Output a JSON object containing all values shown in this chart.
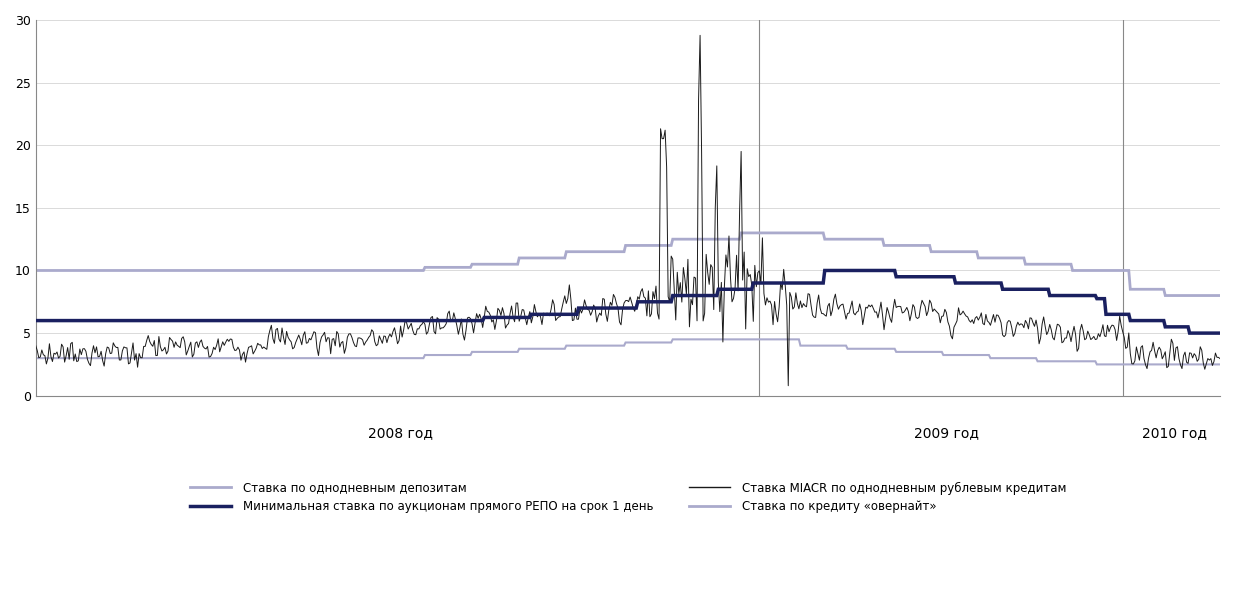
{
  "ylim": [
    0,
    30
  ],
  "yticks": [
    0,
    5,
    10,
    15,
    20,
    25,
    30
  ],
  "year_labels": [
    "2008 год",
    "2009 год",
    "2010 год"
  ],
  "colors": {
    "deposit_color": "#aaaacc",
    "miacr_color": "#1a1a1a",
    "repo_color": "#1a2060",
    "overnight_color": "#aaaacc"
  },
  "legend": {
    "deposit_label": "Ставка по однодневным депозитам",
    "miacr_label": "Ставка MIACR по однодневным рублевым кредитам",
    "repo_label": "Минимальная ставка по аукционам прямого РЕПО на срок 1 день",
    "overnight_label": "Ставка по кредиту «овернайт»"
  }
}
